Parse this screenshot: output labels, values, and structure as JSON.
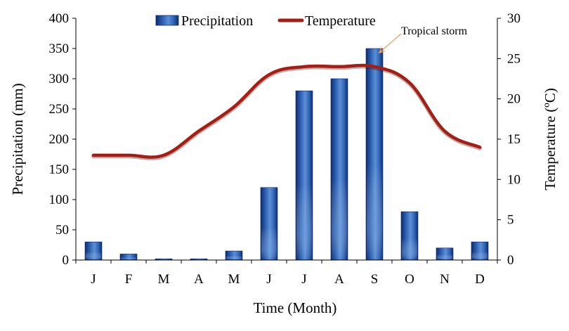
{
  "chart_data": {
    "type": "bar-line-combo",
    "categories": [
      "J",
      "F",
      "M",
      "A",
      "M",
      "J",
      "J",
      "A",
      "S",
      "O",
      "N",
      "D"
    ],
    "series": [
      {
        "name": "Precipitation",
        "type": "bar",
        "axis": "left",
        "values": [
          30,
          10,
          2,
          2,
          15,
          120,
          280,
          300,
          350,
          80,
          20,
          30
        ]
      },
      {
        "name": "Temperature",
        "type": "line",
        "axis": "right",
        "values": [
          13,
          13,
          13,
          16,
          19,
          23,
          24,
          24,
          24,
          22,
          16,
          14
        ]
      }
    ],
    "xlabel": "Time (Month)",
    "ylabel_left": "Precipitation (mm)",
    "ylabel_right": "Temperature (ºC)",
    "ylim_left": [
      0,
      400
    ],
    "ylim_right": [
      0,
      30
    ],
    "yticks_left": [
      0,
      50,
      100,
      150,
      200,
      250,
      300,
      350,
      400
    ],
    "yticks_right": [
      0,
      5,
      10,
      15,
      20,
      25,
      30
    ],
    "grid": false,
    "legend_position": "top",
    "annotation": {
      "text": "Tropical storm",
      "category_index": 8
    },
    "colors": {
      "bar": "#2f62b4",
      "bar_dark": "#0e2c6e",
      "line": "#a31f16",
      "annotation_arrow": "#f2a25c"
    }
  }
}
